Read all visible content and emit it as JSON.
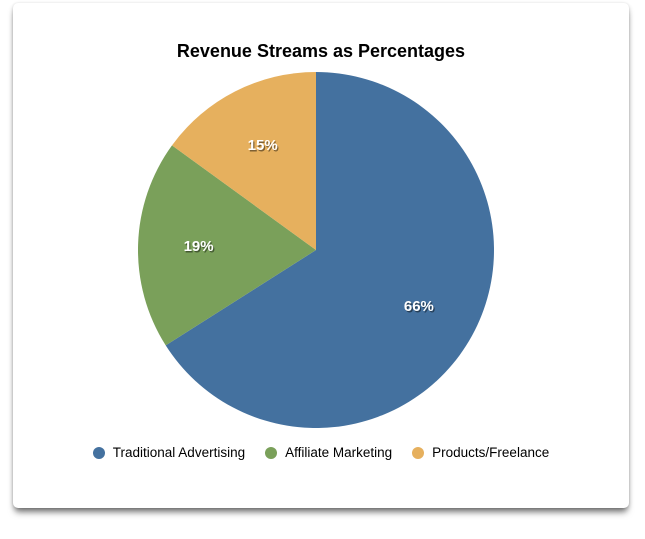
{
  "page": {
    "background_color": "#ffffff",
    "card_color": "#ffffff"
  },
  "chart_data": {
    "type": "pie",
    "title": "Revenue Streams as Percentages",
    "slices": [
      {
        "label": "Traditional Advertising",
        "value": 66,
        "display": "66%",
        "color": "#44719F"
      },
      {
        "label": "Affiliate Marketing",
        "value": 19,
        "display": "19%",
        "color": "#7AA05A"
      },
      {
        "label": "Products/Freelance",
        "value": 15,
        "display": "15%",
        "color": "#E6B05E"
      }
    ],
    "start_angle_deg": 0,
    "direction": "clockwise",
    "slice_label_color": "#ffffff",
    "legend_position": "bottom",
    "legend_text_color": "#000000"
  }
}
